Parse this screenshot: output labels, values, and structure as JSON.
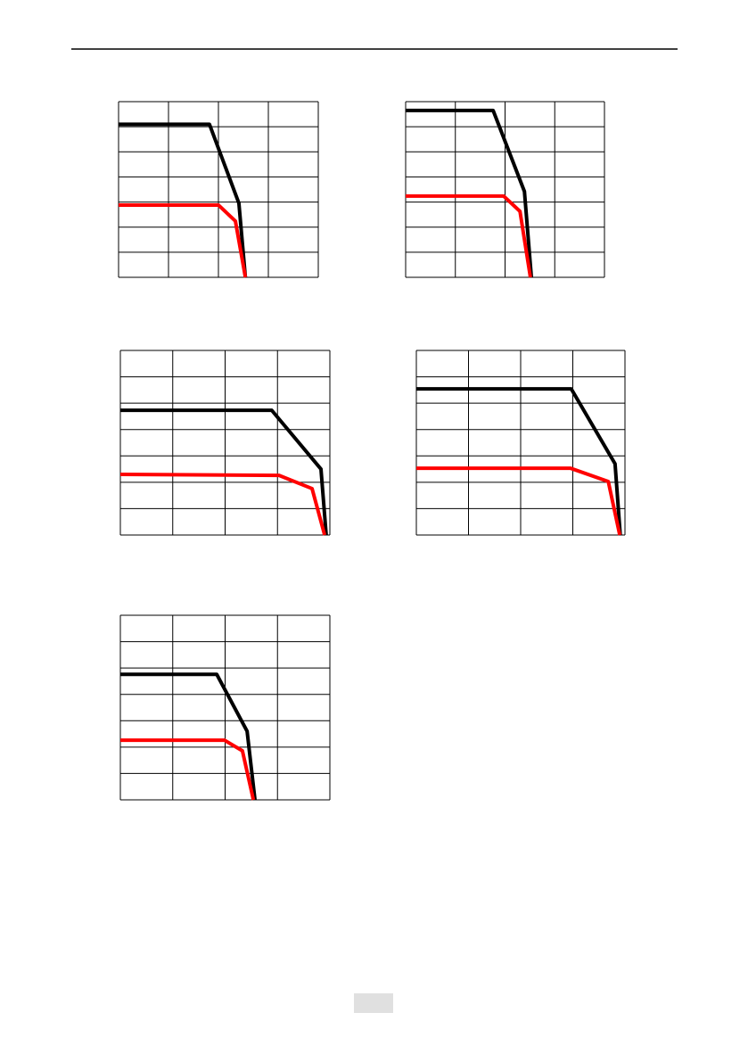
{
  "chart_data": [
    {
      "type": "line",
      "xlim": [
        0,
        4
      ],
      "ylim": [
        0,
        7
      ],
      "xticks": [
        0,
        1,
        2,
        3,
        4
      ],
      "yticks": [
        0,
        1,
        2,
        3,
        4,
        5,
        6,
        7
      ],
      "grid": true,
      "series": [
        {
          "color": "#000000",
          "x": [
            0,
            1.82,
            2.41,
            2.54
          ],
          "values": [
            6.1,
            6.1,
            2.95,
            0
          ]
        },
        {
          "color": "#ff0000",
          "x": [
            0,
            2.0,
            2.34,
            2.54
          ],
          "values": [
            2.88,
            2.88,
            2.24,
            0
          ]
        }
      ]
    },
    {
      "type": "line",
      "xlim": [
        0,
        4
      ],
      "ylim": [
        0,
        7
      ],
      "xticks": [
        0,
        1,
        2,
        3,
        4
      ],
      "yticks": [
        0,
        1,
        2,
        3,
        4,
        5,
        6,
        7
      ],
      "grid": true,
      "series": [
        {
          "color": "#000000",
          "x": [
            0,
            1.76,
            2.39,
            2.53
          ],
          "values": [
            6.65,
            6.65,
            3.42,
            0
          ]
        },
        {
          "color": "#ff0000",
          "x": [
            0,
            1.97,
            2.3,
            2.51
          ],
          "values": [
            3.24,
            3.24,
            2.63,
            0
          ]
        }
      ]
    },
    {
      "type": "line",
      "xlim": [
        0,
        4
      ],
      "ylim": [
        0,
        7
      ],
      "xticks": [
        0,
        1,
        2,
        3,
        4
      ],
      "yticks": [
        0,
        1,
        2,
        3,
        4,
        5,
        6,
        7
      ],
      "grid": true,
      "series": [
        {
          "color": "#000000",
          "x": [
            0,
            2.89,
            3.83,
            3.93
          ],
          "values": [
            4.73,
            4.73,
            2.5,
            0
          ]
        },
        {
          "color": "#ff0000",
          "x": [
            0,
            3.03,
            3.66,
            3.9
          ],
          "values": [
            2.3,
            2.26,
            1.76,
            0
          ]
        }
      ]
    },
    {
      "type": "line",
      "xlim": [
        0,
        4
      ],
      "ylim": [
        0,
        7
      ],
      "xticks": [
        0,
        1,
        2,
        3,
        4
      ],
      "yticks": [
        0,
        1,
        2,
        3,
        4,
        5,
        6,
        7
      ],
      "grid": true,
      "series": [
        {
          "color": "#000000",
          "x": [
            0,
            2.97,
            3.81,
            3.91
          ],
          "values": [
            5.54,
            5.54,
            2.7,
            0
          ]
        },
        {
          "color": "#ff0000",
          "x": [
            0,
            2.96,
            3.68,
            3.9
          ],
          "values": [
            2.53,
            2.53,
            2.03,
            0
          ]
        }
      ]
    },
    {
      "type": "line",
      "xlim": [
        0,
        4
      ],
      "ylim": [
        0,
        7
      ],
      "xticks": [
        0,
        1,
        2,
        3,
        4
      ],
      "yticks": [
        0,
        1,
        2,
        3,
        4,
        5,
        6,
        7
      ],
      "grid": true,
      "series": [
        {
          "color": "#000000",
          "x": [
            0,
            1.84,
            2.42,
            2.57
          ],
          "values": [
            4.76,
            4.76,
            2.6,
            0
          ]
        },
        {
          "color": "#ff0000",
          "x": [
            0,
            1.99,
            2.33,
            2.54
          ],
          "values": [
            2.26,
            2.26,
            1.86,
            0
          ]
        }
      ]
    }
  ]
}
